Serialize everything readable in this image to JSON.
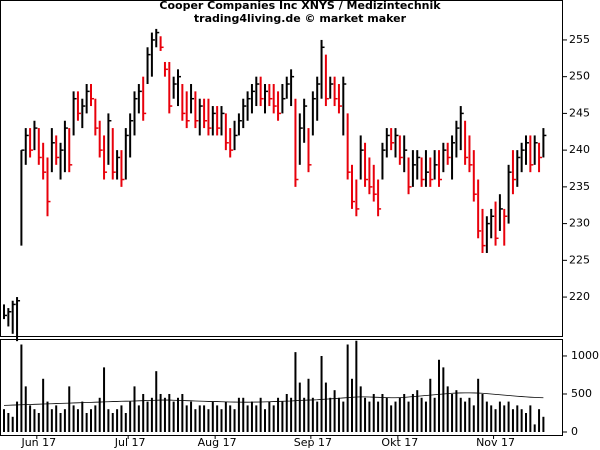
{
  "chart_data": [
    {
      "type": "hlc",
      "title": "Cooper Companies Inc XNYS / Medizintechnik",
      "subtitle": "trading4living.de © market maker",
      "up_color": "#000000",
      "down_color": "#e8000b",
      "ylim": [
        214.7,
        260.3
      ],
      "yticks": [
        220,
        225,
        230,
        235,
        240,
        245,
        250,
        255
      ],
      "high": [
        219,
        218.5,
        219.5,
        220,
        240,
        243,
        243,
        244,
        243,
        241,
        239,
        243,
        242,
        241,
        244,
        243,
        248,
        248,
        247,
        249,
        249,
        247,
        244,
        242,
        245,
        243,
        240,
        240,
        243,
        245,
        248,
        249,
        250,
        254,
        256,
        256.5,
        255.5,
        252,
        252,
        250,
        251,
        249,
        248,
        249,
        248,
        247,
        247,
        247,
        246,
        246,
        246,
        245,
        243,
        244,
        245,
        247,
        248,
        249,
        250,
        250,
        249,
        249,
        249,
        248,
        249,
        250,
        251,
        247,
        245,
        247,
        243,
        248,
        250,
        255,
        253,
        250,
        250,
        249,
        250,
        245,
        238,
        236,
        242,
        241,
        239,
        238,
        236,
        241,
        243,
        243,
        243,
        242,
        242,
        239,
        240,
        240,
        239,
        240,
        239,
        240,
        240,
        241,
        241,
        242,
        244,
        246,
        244,
        242,
        240,
        236,
        232,
        231,
        232,
        233,
        234,
        232,
        238,
        240,
        240,
        241,
        242,
        242,
        242,
        241,
        243
      ],
      "low": [
        217,
        216,
        215,
        214,
        227,
        238,
        239,
        240,
        238,
        236,
        231,
        237,
        238,
        236,
        237,
        237,
        242,
        244,
        243,
        245,
        246,
        242,
        239,
        236,
        238,
        236,
        236,
        235,
        236,
        239,
        242,
        245,
        244,
        249,
        250,
        254,
        253.5,
        250,
        245,
        247,
        246,
        244,
        243,
        245,
        243,
        242,
        243,
        242,
        242,
        242,
        242,
        240,
        239,
        240,
        242,
        243,
        244,
        245,
        246,
        246,
        245,
        246,
        245,
        244,
        245,
        247,
        246,
        235,
        238,
        241,
        237,
        242,
        244,
        247,
        246,
        247,
        246,
        245,
        242,
        236,
        232,
        231,
        236,
        235,
        234,
        233,
        231,
        236,
        239,
        240,
        239,
        238,
        237,
        234,
        235,
        236,
        235,
        235,
        235,
        236,
        235,
        237,
        238,
        236,
        239,
        240,
        238,
        237,
        233,
        228,
        226,
        226,
        228,
        227,
        229,
        227,
        230,
        234,
        235,
        237,
        238,
        237,
        238,
        237,
        239
      ],
      "close": [
        217.5,
        218,
        219,
        219.5,
        240,
        242,
        240,
        243,
        239,
        237,
        233,
        241,
        239,
        240,
        243,
        238,
        247,
        245,
        246,
        248,
        247,
        243,
        240,
        237,
        244,
        237,
        239,
        236,
        242,
        244,
        247,
        248,
        245,
        253,
        255,
        256,
        254,
        251,
        246,
        249,
        250,
        245,
        244,
        247,
        244,
        246,
        244,
        243,
        245,
        243,
        245,
        241,
        240,
        242,
        244,
        246,
        247,
        248,
        249,
        247,
        248,
        247,
        246,
        245,
        247,
        249,
        250,
        236,
        243,
        246,
        238,
        247,
        249,
        254,
        247,
        249,
        247,
        246,
        249,
        237,
        233,
        232,
        240,
        236,
        235,
        234,
        232,
        240,
        242,
        241,
        242,
        239,
        240,
        235,
        238,
        239,
        236,
        237,
        236,
        238,
        236,
        240,
        239,
        241,
        243,
        245,
        239,
        238,
        234,
        229,
        227,
        230,
        231,
        228,
        232,
        231,
        237,
        236,
        239,
        240,
        241,
        238,
        241,
        239,
        242
      ]
    },
    {
      "type": "volume",
      "color": "#000000",
      "line_color": "#000000",
      "ylim": [
        0,
        1210
      ],
      "yticks": [
        0,
        500,
        1000
      ],
      "categories": [
        null,
        null,
        null,
        null,
        null,
        null,
        null,
        null,
        "Jun 17",
        null,
        null,
        null,
        null,
        null,
        null,
        null,
        null,
        null,
        null,
        null,
        null,
        null,
        null,
        null,
        null,
        null,
        null,
        null,
        null,
        "Jul 17",
        null,
        null,
        null,
        null,
        null,
        null,
        null,
        null,
        null,
        null,
        null,
        null,
        null,
        null,
        null,
        null,
        null,
        null,
        null,
        "Aug 17",
        null,
        null,
        null,
        null,
        null,
        null,
        null,
        null,
        null,
        null,
        null,
        null,
        null,
        null,
        null,
        null,
        null,
        null,
        null,
        null,
        null,
        "Sep 17",
        null,
        null,
        null,
        null,
        null,
        null,
        null,
        null,
        null,
        null,
        null,
        null,
        null,
        null,
        null,
        null,
        null,
        null,
        null,
        "Okt 17",
        null,
        null,
        null,
        null,
        null,
        null,
        null,
        null,
        null,
        null,
        null,
        null,
        null,
        null,
        null,
        null,
        null,
        null,
        null,
        null,
        null,
        "Nov 17",
        null,
        null,
        null,
        null,
        null,
        null,
        null,
        null,
        null,
        null,
        null
      ],
      "values": [
        300,
        250,
        200,
        400,
        1150,
        600,
        350,
        300,
        250,
        700,
        400,
        300,
        350,
        250,
        300,
        600,
        350,
        300,
        400,
        250,
        300,
        350,
        450,
        850,
        300,
        250,
        300,
        350,
        250,
        400,
        600,
        350,
        500,
        400,
        450,
        800,
        500,
        450,
        500,
        400,
        450,
        500,
        350,
        400,
        300,
        350,
        350,
        300,
        400,
        350,
        300,
        400,
        350,
        300,
        450,
        450,
        350,
        400,
        350,
        450,
        300,
        400,
        350,
        450,
        400,
        500,
        450,
        1050,
        650,
        450,
        700,
        450,
        400,
        1000,
        650,
        450,
        550,
        450,
        400,
        1150,
        700,
        1200,
        600,
        450,
        400,
        500,
        400,
        500,
        450,
        350,
        400,
        450,
        500,
        400,
        500,
        550,
        450,
        400,
        700,
        450,
        950,
        850,
        600,
        500,
        550,
        450,
        400,
        450,
        350,
        700,
        500,
        400,
        350,
        300,
        400,
        350,
        400,
        300,
        350,
        300,
        250,
        350,
        100,
        300,
        200
      ],
      "average": [
        350,
        352,
        354,
        356,
        358,
        360,
        362,
        364,
        366,
        368,
        370,
        372,
        374,
        376,
        378,
        380,
        382,
        384,
        386,
        388,
        390,
        392,
        394,
        396,
        398,
        400,
        402,
        404,
        405,
        406,
        408,
        410,
        412,
        414,
        416,
        418,
        420,
        420,
        420,
        418,
        416,
        414,
        412,
        410,
        408,
        406,
        404,
        402,
        400,
        400,
        398,
        396,
        395,
        394,
        393,
        392,
        392,
        393,
        394,
        395,
        396,
        398,
        400,
        402,
        404,
        406,
        408,
        412,
        416,
        418,
        420,
        422,
        424,
        428,
        432,
        436,
        440,
        444,
        448,
        452,
        456,
        460,
        462,
        462,
        460,
        458,
        456,
        454,
        452,
        450,
        450,
        452,
        455,
        460,
        465,
        470,
        475,
        480,
        485,
        490,
        495,
        500,
        505,
        510,
        512,
        514,
        515,
        515,
        514,
        512,
        510,
        505,
        500,
        495,
        490,
        485,
        480,
        475,
        470,
        466,
        462,
        458,
        455,
        452,
        450
      ]
    }
  ]
}
